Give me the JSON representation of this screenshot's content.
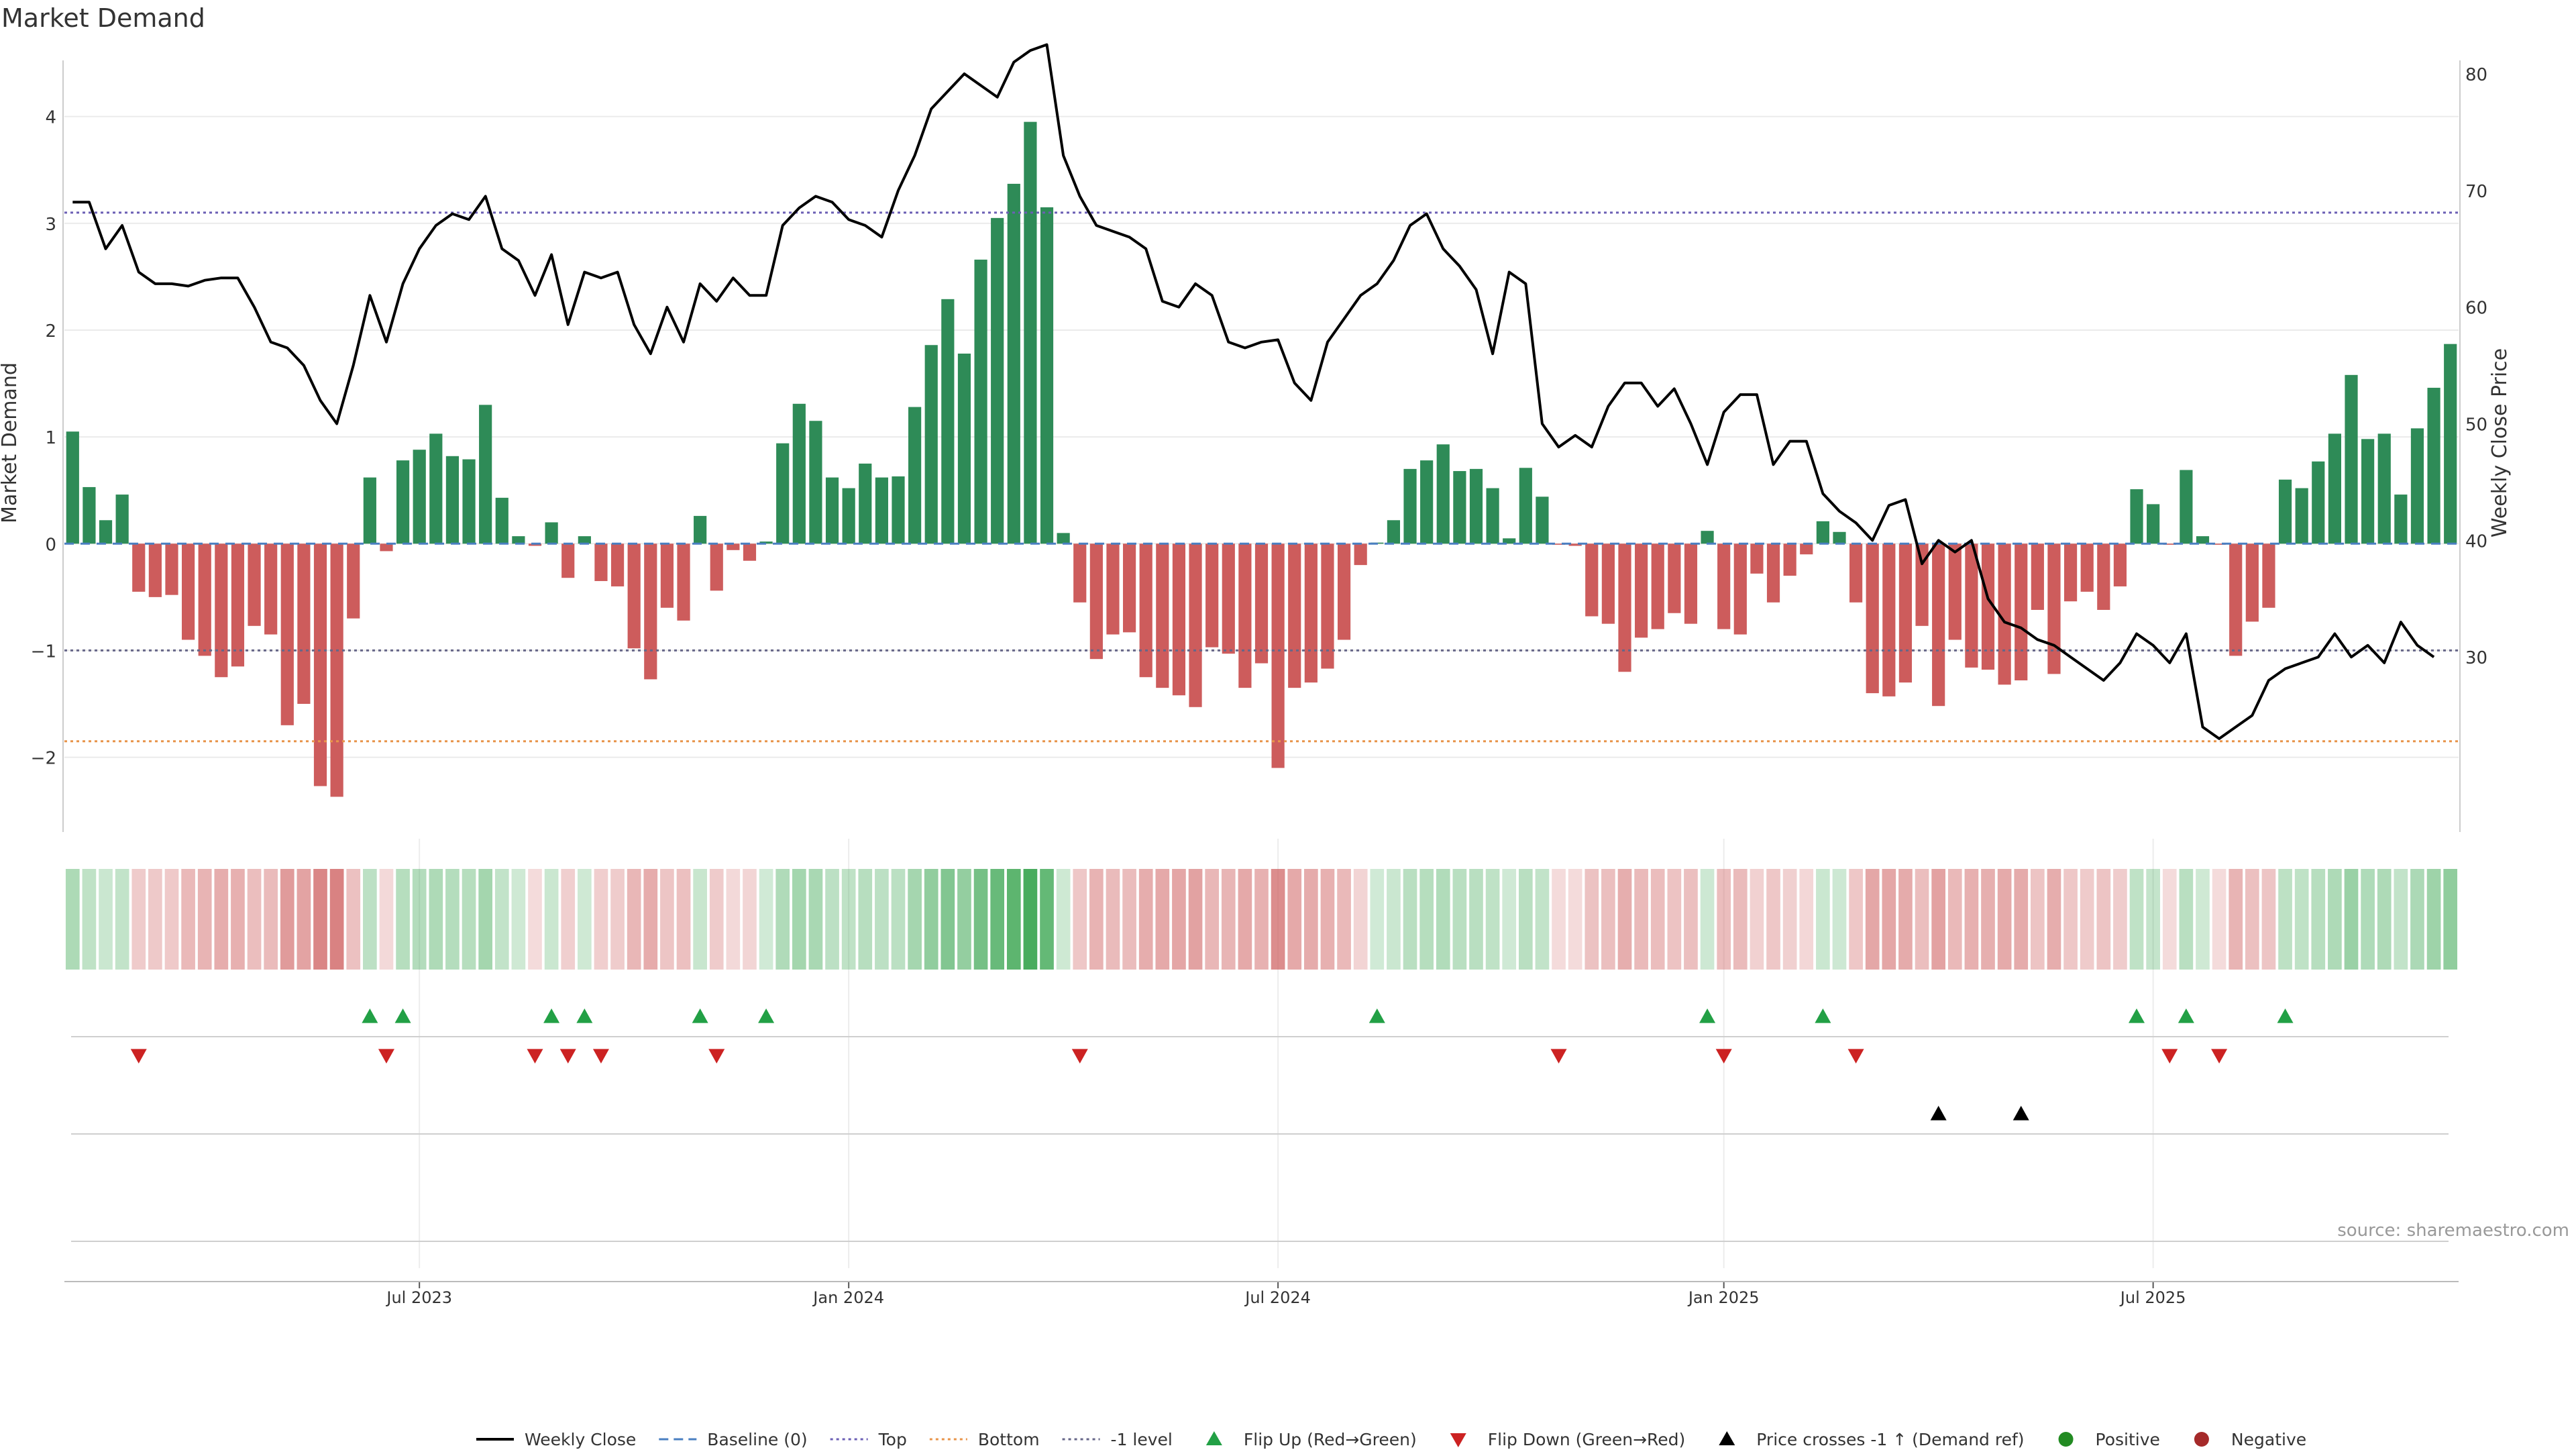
{
  "chart_data": {
    "type": "bar",
    "title": "Market Demand",
    "ylabel_left": "Market Demand",
    "ylabel_right": "Weekly Close Price",
    "source": "source: sharemaestro.com",
    "start_date": "2023-01-16",
    "ylim_left": [
      -2.7,
      4.4
    ],
    "ylim_right": [
      15,
      80
    ],
    "yticks_left": [
      {
        "v": 4,
        "label": "4"
      },
      {
        "v": 3,
        "label": "3"
      },
      {
        "v": 2,
        "label": "2"
      },
      {
        "v": 1,
        "label": "1"
      },
      {
        "v": 0,
        "label": "0"
      },
      {
        "v": -1,
        "label": "−1"
      },
      {
        "v": -2,
        "label": "−2"
      }
    ],
    "yticks_right": [
      {
        "v": 80,
        "label": "80"
      },
      {
        "v": 70,
        "label": "70"
      },
      {
        "v": 60,
        "label": "60"
      },
      {
        "v": 50,
        "label": "50"
      },
      {
        "v": 40,
        "label": "40"
      },
      {
        "v": 30,
        "label": "30"
      }
    ],
    "xticks": [
      {
        "index": 21,
        "label": "Jul 2023"
      },
      {
        "index": 47,
        "label": "Jan 2024"
      },
      {
        "index": 73,
        "label": "Jul 2024"
      },
      {
        "index": 100,
        "label": "Jan 2025"
      },
      {
        "index": 126,
        "label": "Jul 2025"
      }
    ],
    "reference_lines": [
      {
        "name": "Top",
        "value": 3.1,
        "color": "#6b5fb5"
      },
      {
        "name": "-1 level",
        "value": -1.0,
        "color": "#666688"
      },
      {
        "name": "Bottom",
        "value": -1.85,
        "color": "#e8944a"
      }
    ],
    "colors": {
      "positive_bar": "#2e8b57",
      "negative_bar": "#cd5c5c",
      "price_line": "#000000",
      "baseline": "#4a7fc1",
      "flip_up": "#22a045",
      "flip_down": "#cc2222",
      "price_cross": "#000000"
    },
    "demand": [
      1.05,
      0.53,
      0.22,
      0.46,
      -0.45,
      -0.5,
      -0.48,
      -0.9,
      -1.05,
      -1.25,
      -1.15,
      -0.77,
      -0.85,
      -1.7,
      -1.5,
      -2.27,
      -2.37,
      -0.7,
      0.62,
      -0.07,
      0.78,
      0.88,
      1.03,
      0.82,
      0.79,
      1.3,
      0.43,
      0.07,
      -0.02,
      0.2,
      -0.32,
      0.07,
      -0.35,
      -0.4,
      -0.98,
      -1.27,
      -0.6,
      -0.72,
      0.26,
      -0.44,
      -0.06,
      -0.16,
      0.02,
      0.94,
      1.31,
      1.15,
      0.62,
      0.52,
      0.75,
      0.62,
      0.63,
      1.28,
      1.86,
      2.29,
      1.78,
      2.66,
      3.05,
      3.37,
      3.95,
      3.15,
      0.1,
      -0.55,
      -1.08,
      -0.85,
      -0.83,
      -1.25,
      -1.35,
      -1.42,
      -1.53,
      -0.97,
      -1.03,
      -1.35,
      -1.12,
      -2.1,
      -1.35,
      -1.3,
      -1.17,
      -0.9,
      -0.2,
      0.01,
      0.22,
      0.7,
      0.78,
      0.93,
      0.68,
      0.7,
      0.52,
      0.05,
      0.71,
      0.44,
      -0.01,
      -0.02,
      -0.68,
      -0.75,
      -1.2,
      -0.88,
      -0.8,
      -0.65,
      -0.75,
      0.12,
      -0.8,
      -0.85,
      -0.28,
      -0.55,
      -0.3,
      -0.1,
      0.21,
      0.11,
      -0.55,
      -1.4,
      -1.43,
      -1.3,
      -0.77,
      -1.52,
      -0.9,
      -1.16,
      -1.18,
      -1.32,
      -1.28,
      -0.62,
      -1.22,
      -0.54,
      -0.45,
      -0.62,
      -0.4,
      0.51,
      0.37,
      -0.01,
      0.69,
      0.07,
      -0.01,
      -1.05,
      -0.73,
      -0.6,
      0.6,
      0.52,
      0.77,
      1.03,
      1.58,
      0.98,
      1.03,
      0.46,
      1.08,
      1.46,
      1.87
    ],
    "price": [
      69,
      69,
      65,
      67,
      63,
      62,
      62,
      61.8,
      62.3,
      62.5,
      62.5,
      60,
      57,
      56.5,
      55,
      52,
      50,
      55,
      61,
      57,
      62,
      65,
      67,
      68,
      67.5,
      69.5,
      65,
      64,
      61,
      64.5,
      58.5,
      63,
      62.5,
      63,
      58.5,
      56,
      60,
      57,
      62,
      60.5,
      62.5,
      61,
      61,
      67,
      68.5,
      69.5,
      69,
      67.5,
      67,
      66,
      70,
      73,
      77,
      78.5,
      80,
      79,
      78,
      81,
      82,
      82.5,
      73,
      69.5,
      67,
      66.5,
      66,
      65,
      60.5,
      60,
      62,
      61,
      57,
      56.5,
      57,
      57.2,
      53.5,
      52,
      57,
      59,
      61,
      62,
      64,
      67,
      68,
      65,
      63.5,
      61.5,
      56,
      63,
      62,
      50,
      48,
      49,
      48,
      51.5,
      53.5,
      53.5,
      51.5,
      53,
      50,
      46.5,
      51,
      52.5,
      52.5,
      46.5,
      48.5,
      48.5,
      44,
      42.5,
      41.5,
      40,
      43,
      43.5,
      38,
      40,
      39,
      40,
      35,
      33,
      32.5,
      31.5,
      31,
      30,
      29,
      28,
      29.5,
      32,
      31,
      29.5,
      32,
      24,
      23,
      24,
      25,
      28,
      29,
      29.5,
      30,
      32,
      30,
      31,
      29.5,
      33,
      31,
      30
    ]
  },
  "legend": [
    {
      "label": "Weekly Close",
      "kind": "line-solid",
      "color": "#000000"
    },
    {
      "label": "Baseline (0)",
      "kind": "line-dash",
      "color": "#4a7fc1"
    },
    {
      "label": "Top",
      "kind": "line-dot",
      "color": "#6b5fb5"
    },
    {
      "label": "Bottom",
      "kind": "line-dot",
      "color": "#e8944a"
    },
    {
      "label": "-1 level",
      "kind": "line-dot",
      "color": "#666688"
    },
    {
      "label": "Flip Up (Red→Green)",
      "kind": "tri-up",
      "color": "#22a045"
    },
    {
      "label": "Flip Down (Green→Red)",
      "kind": "tri-down",
      "color": "#cc2222"
    },
    {
      "label": "Price crosses -1 ↑ (Demand ref)",
      "kind": "tri-up",
      "color": "#000000"
    },
    {
      "label": "Positive",
      "kind": "dot",
      "color": "#228b22"
    },
    {
      "label": "Negative",
      "kind": "dot",
      "color": "#a52a2a"
    }
  ],
  "price_cross_indices": [
    113,
    118
  ]
}
